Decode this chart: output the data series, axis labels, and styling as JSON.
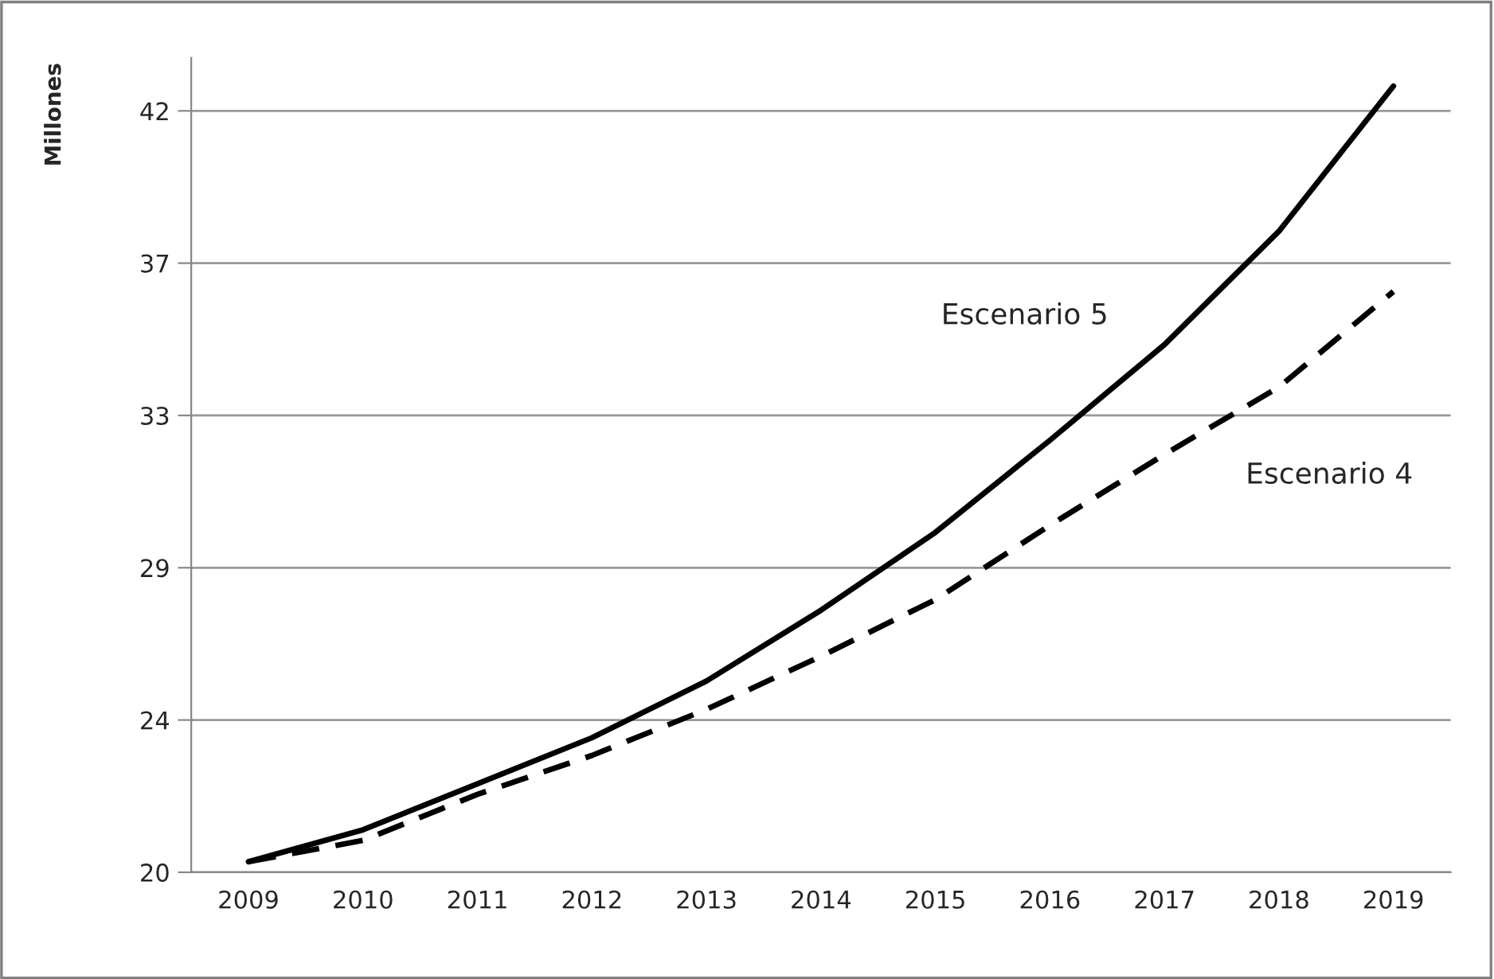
{
  "chart_data": {
    "type": "line",
    "ylabel": "Millones",
    "categories": [
      "2009",
      "2010",
      "2011",
      "2012",
      "2013",
      "2014",
      "2015",
      "2016",
      "2017",
      "2018",
      "2019"
    ],
    "series": [
      {
        "name": "Escenario 5",
        "color": "#000000",
        "line_style": "solid",
        "values": [
          20.3,
          21.2,
          22.5,
          23.8,
          25.4,
          27.4,
          29.6,
          32.2,
          34.9,
          38.1,
          42.2
        ]
      },
      {
        "name": "Escenario 4",
        "color": "#000000",
        "line_style": "dashed",
        "values": [
          20.3,
          20.9,
          22.2,
          23.3,
          24.6,
          26.1,
          27.7,
          29.8,
          31.8,
          33.7,
          36.4
        ]
      }
    ],
    "ylim": [
      20,
      43
    ],
    "yticks": [
      {
        "value": 20,
        "label": "20"
      },
      {
        "value": 24.3,
        "label": "24"
      },
      {
        "value": 28.6,
        "label": "29"
      },
      {
        "value": 32.9,
        "label": "33"
      },
      {
        "value": 37.2,
        "label": "37"
      },
      {
        "value": 41.5,
        "label": "42"
      }
    ],
    "grid": "y",
    "legend": false,
    "marker": "none"
  }
}
